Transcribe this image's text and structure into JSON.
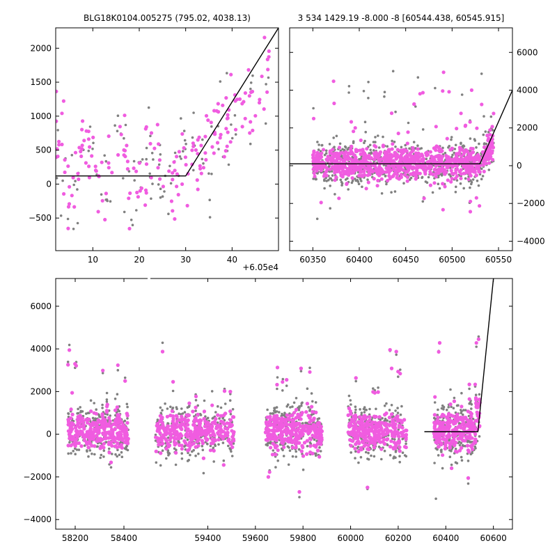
{
  "colors": {
    "gray": "#808080",
    "magenta": "#f05ce0",
    "model_line": "#000000"
  },
  "chart_data": [
    {
      "id": "zoom_peak",
      "type": "scatter",
      "title": "BLG18K0104.005275 (795.02, 4038.13)",
      "xlabel": "",
      "ylabel": "",
      "xlim": [
        2,
        50
      ],
      "ylim": [
        -980,
        2300
      ],
      "x_ticks": [
        10,
        20,
        30,
        40
      ],
      "x_offset_label": "+6.05e4",
      "y_ticks": [
        -500,
        0,
        500,
        1000,
        1500,
        2000
      ],
      "y_axis_side": "left",
      "grid": false,
      "model": {
        "x": [
          2,
          30,
          50
        ],
        "y": [
          120,
          120,
          2300
        ]
      },
      "series": [
        {
          "color_key": "gray",
          "n": 110,
          "x_range": [
            2,
            48
          ],
          "spread": 350
        },
        {
          "color_key": "magenta",
          "n": 190,
          "x_range": [
            2,
            48
          ],
          "spread": 300
        }
      ]
    },
    {
      "id": "recent_season",
      "type": "scatter",
      "title": "3 534 1429.19 -8.000 -8 [60544.438, 60545.915]",
      "xlabel": "",
      "ylabel": "",
      "xlim": [
        60325,
        60565
      ],
      "ylim": [
        -4500,
        7300
      ],
      "x_ticks": [
        60350,
        60400,
        60450,
        60500,
        60550
      ],
      "y_ticks": [
        -4000,
        -2000,
        0,
        2000,
        4000,
        6000
      ],
      "y_axis_side": "right",
      "grid": false,
      "model": {
        "x": [
          60325,
          60530,
          60565
        ],
        "y": [
          100,
          100,
          4000
        ]
      },
      "series": [
        {
          "color_key": "gray",
          "n": 700,
          "x_range": [
            60350,
            60545
          ],
          "spread": 600
        },
        {
          "color_key": "magenta",
          "n": 900,
          "x_range": [
            60350,
            60545
          ],
          "spread": 420
        }
      ]
    },
    {
      "id": "full_light_curve",
      "type": "scatter",
      "title": "",
      "xlabel": "",
      "ylabel": "",
      "xlim": [
        58120,
        60680
      ],
      "ylim": [
        -4450,
        7300
      ],
      "x_ticks": [
        58200,
        58400,
        59400,
        59600,
        59800,
        60000,
        60200,
        60400,
        60600
      ],
      "y_ticks": [
        -4000,
        -2000,
        0,
        2000,
        4000,
        6000
      ],
      "y_axis_side": "left",
      "grid": false,
      "axis_break": [
        58500,
        59150
      ],
      "seasons": [
        [
          58170,
          58420
        ],
        [
          59180,
          59510
        ],
        [
          59640,
          59880
        ],
        [
          59990,
          60235
        ],
        [
          60350,
          60545
        ]
      ],
      "model": {
        "x": [
          60310,
          60535,
          60600
        ],
        "y": [
          120,
          120,
          7300
        ]
      },
      "series": [
        {
          "color_key": "gray",
          "n": 1400,
          "spread": 650
        },
        {
          "color_key": "magenta",
          "n": 2600,
          "spread": 420
        }
      ]
    }
  ]
}
